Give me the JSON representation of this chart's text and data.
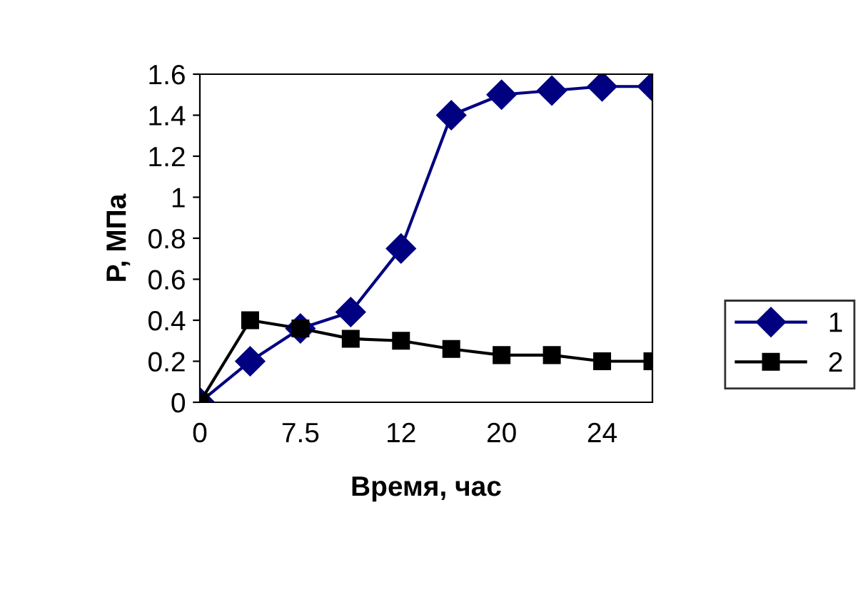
{
  "chart_data": {
    "type": "line",
    "xlabel": "Время, час",
    "ylabel": "P, МПа",
    "categories": [
      "0",
      null,
      "7.5",
      null,
      "12",
      null,
      "20",
      null,
      "24",
      null
    ],
    "series": [
      {
        "name": "1",
        "color": "#000080",
        "marker": "diamond",
        "values": [
          0,
          0.2,
          0.36,
          0.44,
          0.75,
          1.4,
          1.5,
          1.52,
          1.54,
          1.54
        ]
      },
      {
        "name": "2",
        "color": "#000000",
        "marker": "square",
        "values": [
          0,
          0.4,
          0.36,
          0.31,
          0.3,
          0.26,
          0.23,
          0.23,
          0.2,
          0.2
        ]
      }
    ],
    "ylim": [
      0,
      1.6
    ],
    "yticks": [
      0,
      0.2,
      0.4,
      0.6,
      0.8,
      1,
      1.2,
      1.4,
      1.6
    ],
    "grid": false,
    "legend": "right",
    "line_style": "solid"
  }
}
